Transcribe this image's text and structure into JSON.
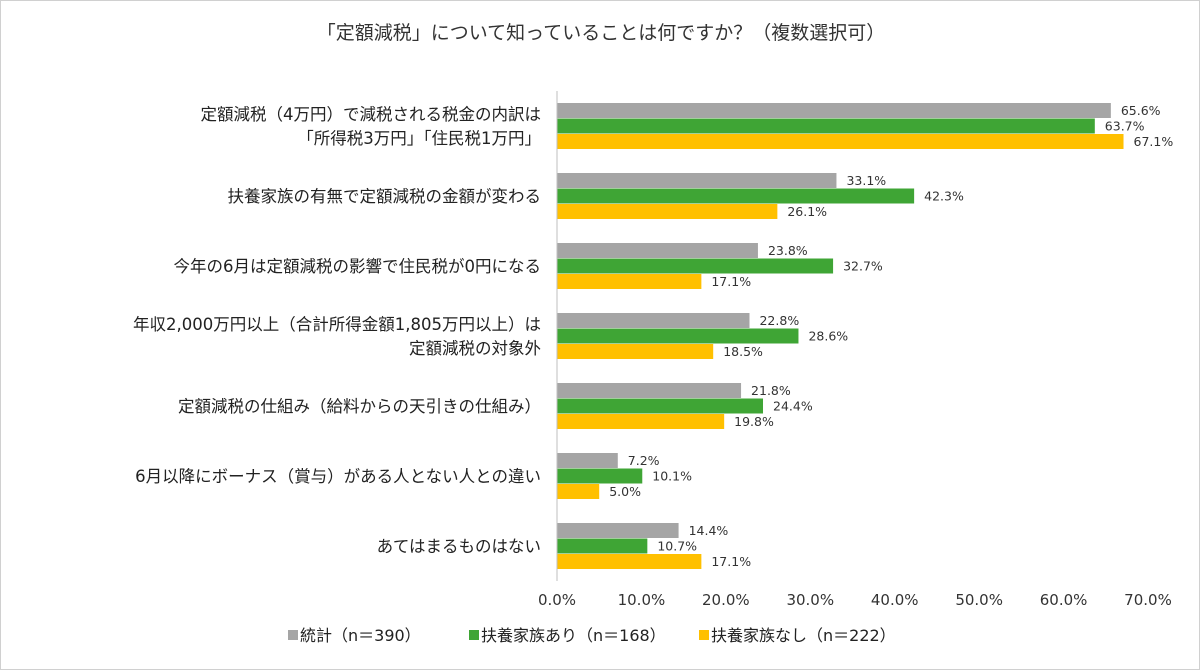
{
  "chart_data": {
    "type": "bar",
    "orientation": "horizontal",
    "title": "「定額減税」について知っていることは何ですか？（複数選択可）",
    "categories": [
      [
        "定額減税（4万円）で減税される税金の内訳は",
        "「所得税3万円」「住民税1万円」"
      ],
      [
        "扶養家族の有無で定額減税の金額が変わる"
      ],
      [
        "今年の6月は定額減税の影響で住民税が0円になる"
      ],
      [
        "年収2,000万円以上（合計所得金額1,805万円以上）は",
        "定額減税の対象外"
      ],
      [
        "定額減税の仕組み（給料からの天引きの仕組み）"
      ],
      [
        "6月以降にボーナス（賞与）がある人とない人との違い"
      ],
      [
        "あてはまるものはない"
      ]
    ],
    "series": [
      {
        "name": "統計（n＝390）",
        "color": "#A5A5A5",
        "values": [
          65.6,
          33.1,
          23.8,
          22.8,
          21.8,
          7.2,
          14.4
        ],
        "labels": [
          "65.6%",
          "33.1%",
          "23.8%",
          "22.8%",
          "21.8%",
          "7.2%",
          "14.4%"
        ]
      },
      {
        "name": "扶養家族あり（n＝168）",
        "color": "#3FA535",
        "values": [
          63.7,
          42.3,
          32.7,
          28.6,
          24.4,
          10.1,
          10.7
        ],
        "labels": [
          "63.7%",
          "42.3%",
          "32.7%",
          "28.6%",
          "24.4%",
          "10.1%",
          "10.7%"
        ]
      },
      {
        "name": "扶養家族なし（n＝222）",
        "color": "#FFC000",
        "values": [
          67.1,
          26.1,
          17.1,
          18.5,
          19.8,
          5.0,
          17.1
        ],
        "labels": [
          "67.1%",
          "26.1%",
          "17.1%",
          "18.5%",
          "19.8%",
          "5.0%",
          "17.1%"
        ]
      }
    ],
    "xlim": [
      0,
      70
    ],
    "ticks": [
      0,
      10,
      20,
      30,
      40,
      50,
      60,
      70
    ],
    "tick_labels": [
      "0.0%",
      "10.0%",
      "20.0%",
      "30.0%",
      "40.0%",
      "50.0%",
      "60.0%",
      "70.0%"
    ],
    "grid": false,
    "legend": "bottom"
  }
}
